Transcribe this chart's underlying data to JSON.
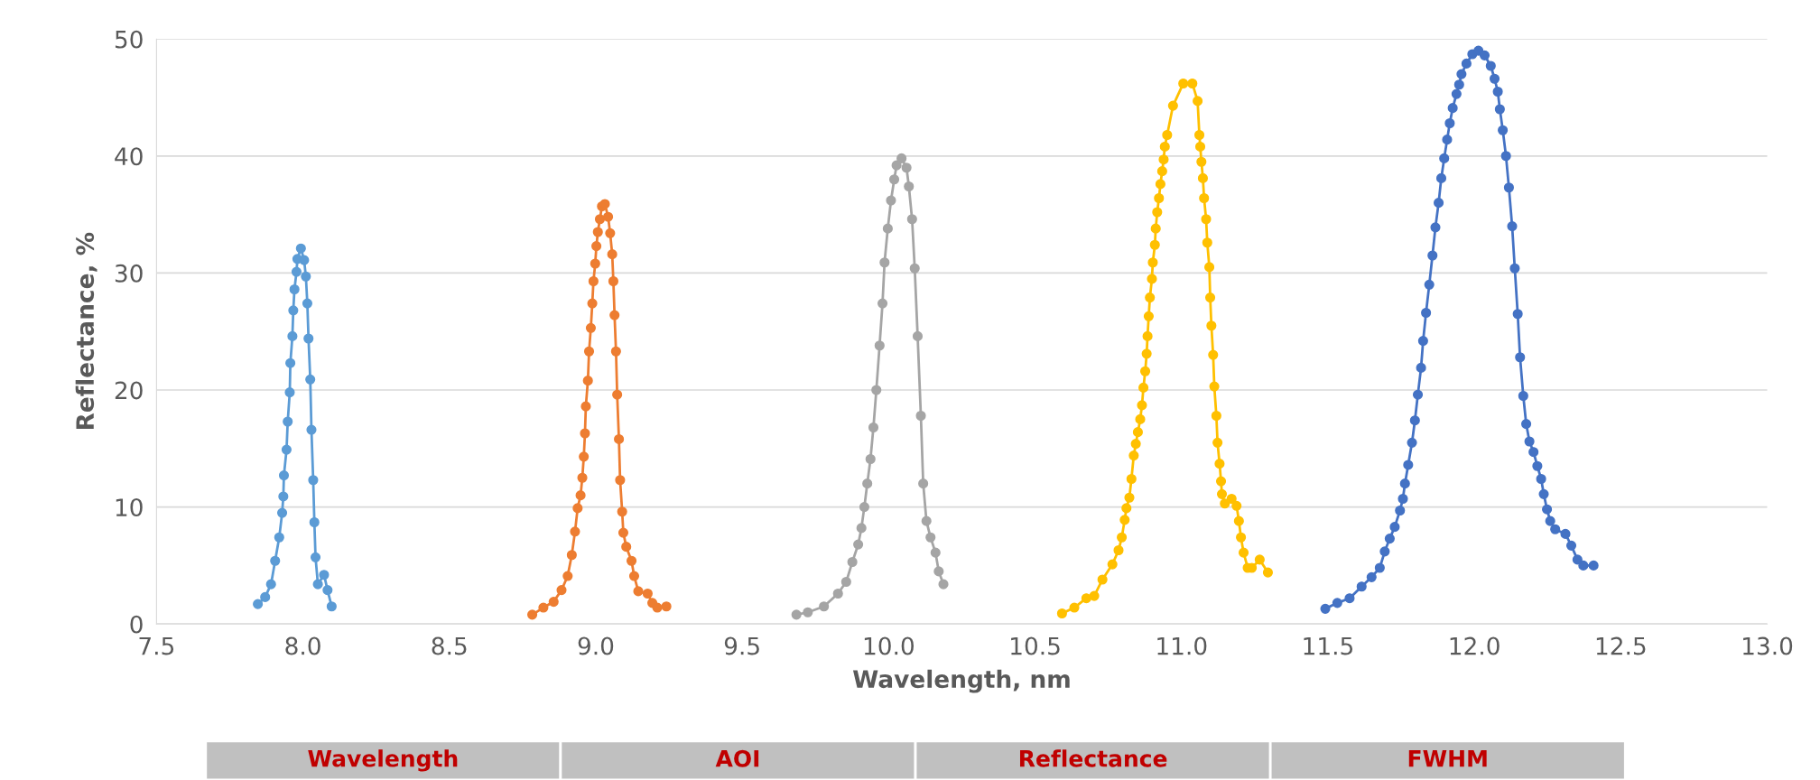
{
  "chart_data": {
    "type": "line",
    "xlabel": "Wavelength, nm",
    "ylabel": "Reflectance, %",
    "xlim": [
      7.5,
      13.0
    ],
    "xticks": [
      {
        "value": 7.5,
        "label": "7.5"
      },
      {
        "value": 8.0,
        "label": "8.0"
      },
      {
        "value": 8.5,
        "label": "8.5"
      },
      {
        "value": 9.0,
        "label": "9.0"
      },
      {
        "value": 9.5,
        "label": "9.5"
      },
      {
        "value": 10.0,
        "label": "10.0"
      },
      {
        "value": 10.5,
        "label": "10.5"
      },
      {
        "value": 11.0,
        "label": "11.0"
      },
      {
        "value": 11.5,
        "label": "11.5"
      },
      {
        "value": 12.0,
        "label": "12.0"
      },
      {
        "value": 12.5,
        "label": "12.5"
      },
      {
        "value": 13.0,
        "label": "13.0"
      }
    ],
    "ylim": [
      0,
      50
    ],
    "yticks": [
      0,
      10,
      20,
      30,
      40,
      50
    ],
    "grid": "y",
    "marker": "circle",
    "line_style": "solid",
    "annotations": [
      "Wavelength",
      "AOI",
      "Reflectance",
      "FWHM"
    ],
    "series": [
      {
        "color": "#5b9bd5",
        "x": [
          7.846,
          7.871,
          7.891,
          7.905,
          7.919,
          7.929,
          7.933,
          7.935,
          7.944,
          7.948,
          7.955,
          7.957,
          7.964,
          7.967,
          7.971,
          7.978,
          7.981,
          7.993,
          8.004,
          8.01,
          8.015,
          8.019,
          8.025,
          8.029,
          8.035,
          8.039,
          8.043,
          8.051,
          8.072,
          8.084,
          8.098
        ],
        "values": [
          1.7,
          2.3,
          3.4,
          5.4,
          7.4,
          9.5,
          10.9,
          12.7,
          14.9,
          17.3,
          19.8,
          22.3,
          24.6,
          26.8,
          28.6,
          30.1,
          31.2,
          32.1,
          31.1,
          29.7,
          27.4,
          24.4,
          20.9,
          16.6,
          12.3,
          8.7,
          5.7,
          3.4,
          4.2,
          2.9,
          1.5
        ]
      },
      {
        "color": "#ed7d31",
        "x": [
          8.783,
          8.821,
          8.856,
          8.883,
          8.904,
          8.918,
          8.929,
          8.938,
          8.948,
          8.954,
          8.959,
          8.963,
          8.966,
          8.973,
          8.977,
          8.983,
          8.988,
          8.992,
          8.998,
          9.002,
          9.007,
          9.014,
          9.021,
          9.031,
          9.042,
          9.049,
          9.056,
          9.06,
          9.064,
          9.069,
          9.073,
          9.079,
          9.083,
          9.09,
          9.094,
          9.104,
          9.122,
          9.131,
          9.145,
          9.177,
          9.193,
          9.21,
          9.241
        ],
        "values": [
          0.8,
          1.4,
          1.9,
          2.9,
          4.1,
          5.9,
          7.9,
          9.9,
          11.0,
          12.5,
          14.3,
          16.3,
          18.6,
          20.8,
          23.3,
          25.3,
          27.4,
          29.3,
          30.8,
          32.3,
          33.5,
          34.6,
          35.7,
          35.9,
          34.8,
          33.4,
          31.6,
          29.3,
          26.4,
          23.3,
          19.6,
          15.8,
          12.3,
          9.6,
          7.8,
          6.6,
          5.4,
          4.1,
          2.8,
          2.6,
          1.8,
          1.4,
          1.5
        ]
      },
      {
        "color": "#a5a5a5",
        "x": [
          9.685,
          9.724,
          9.779,
          9.827,
          9.855,
          9.876,
          9.896,
          9.907,
          9.917,
          9.927,
          9.938,
          9.948,
          9.958,
          9.969,
          9.979,
          9.986,
          9.997,
          10.008,
          10.019,
          10.027,
          10.044,
          10.061,
          10.069,
          10.08,
          10.089,
          10.099,
          10.11,
          10.118,
          10.129,
          10.143,
          10.16,
          10.171,
          10.187
        ],
        "values": [
          0.8,
          1.0,
          1.5,
          2.6,
          3.6,
          5.3,
          6.8,
          8.2,
          10.0,
          12.0,
          14.1,
          16.8,
          20.0,
          23.8,
          27.4,
          30.9,
          33.8,
          36.2,
          38.0,
          39.2,
          39.8,
          39.0,
          37.4,
          34.6,
          30.4,
          24.6,
          17.8,
          12.0,
          8.8,
          7.4,
          6.1,
          4.5,
          3.4
        ]
      },
      {
        "color": "#ffc000",
        "x": [
          10.592,
          10.634,
          10.675,
          10.702,
          10.73,
          10.764,
          10.785,
          10.796,
          10.806,
          10.812,
          10.822,
          10.829,
          10.837,
          10.844,
          10.851,
          10.859,
          10.865,
          10.87,
          10.876,
          10.881,
          10.884,
          10.888,
          10.892,
          10.899,
          10.902,
          10.909,
          10.912,
          10.917,
          10.923,
          10.928,
          10.934,
          10.939,
          10.943,
          10.951,
          10.971,
          11.006,
          11.037,
          11.055,
          11.061,
          11.064,
          11.068,
          11.073,
          11.077,
          11.084,
          11.088,
          11.095,
          11.098,
          11.102,
          11.108,
          11.112,
          11.119,
          11.123,
          11.13,
          11.135,
          11.138,
          11.148,
          11.171,
          11.188,
          11.196,
          11.203,
          11.212,
          11.226,
          11.24,
          11.267,
          11.295
        ],
        "values": [
          0.9,
          1.4,
          2.2,
          2.4,
          3.8,
          5.1,
          6.3,
          7.4,
          8.9,
          9.9,
          10.8,
          12.4,
          14.4,
          15.4,
          16.4,
          17.5,
          18.7,
          20.2,
          21.6,
          23.1,
          24.6,
          26.3,
          27.9,
          29.5,
          30.9,
          32.4,
          33.8,
          35.2,
          36.4,
          37.6,
          38.7,
          39.7,
          40.8,
          41.8,
          44.3,
          46.2,
          46.2,
          44.7,
          41.8,
          40.8,
          39.5,
          38.1,
          36.4,
          34.6,
          32.6,
          30.5,
          27.9,
          25.5,
          23.0,
          20.3,
          17.8,
          15.5,
          13.7,
          12.2,
          11.1,
          10.3,
          10.7,
          10.1,
          8.8,
          7.4,
          6.1,
          4.8,
          4.8,
          5.5,
          4.4
        ]
      },
      {
        "color": "#4472c4",
        "x": [
          11.491,
          11.532,
          11.574,
          11.615,
          11.649,
          11.677,
          11.694,
          11.711,
          11.728,
          11.746,
          11.756,
          11.763,
          11.774,
          11.787,
          11.797,
          11.807,
          11.818,
          11.825,
          11.835,
          11.846,
          11.857,
          11.867,
          11.878,
          11.887,
          11.897,
          11.907,
          11.916,
          11.926,
          11.939,
          11.948,
          11.956,
          11.973,
          11.993,
          12.014,
          12.035,
          12.056,
          12.069,
          12.08,
          12.087,
          12.097,
          12.108,
          12.118,
          12.129,
          12.138,
          12.148,
          12.156,
          12.167,
          12.177,
          12.188,
          12.202,
          12.215,
          12.228,
          12.237,
          12.248,
          12.259,
          12.276,
          12.311,
          12.331,
          12.352,
          12.372,
          12.407
        ],
        "values": [
          1.3,
          1.8,
          2.2,
          3.2,
          4.0,
          4.8,
          6.2,
          7.3,
          8.3,
          9.7,
          10.7,
          12.0,
          13.6,
          15.5,
          17.4,
          19.6,
          21.9,
          24.2,
          26.6,
          29.0,
          31.5,
          33.9,
          36.0,
          38.1,
          39.8,
          41.4,
          42.8,
          44.1,
          45.3,
          46.1,
          47.0,
          47.9,
          48.7,
          49.0,
          48.6,
          47.7,
          46.6,
          45.5,
          44.0,
          42.2,
          40.0,
          37.3,
          34.0,
          30.4,
          26.5,
          22.8,
          19.5,
          17.1,
          15.6,
          14.7,
          13.5,
          12.4,
          11.1,
          9.8,
          8.8,
          8.1,
          7.7,
          6.7,
          5.5,
          5.0,
          5.0
        ]
      }
    ]
  }
}
